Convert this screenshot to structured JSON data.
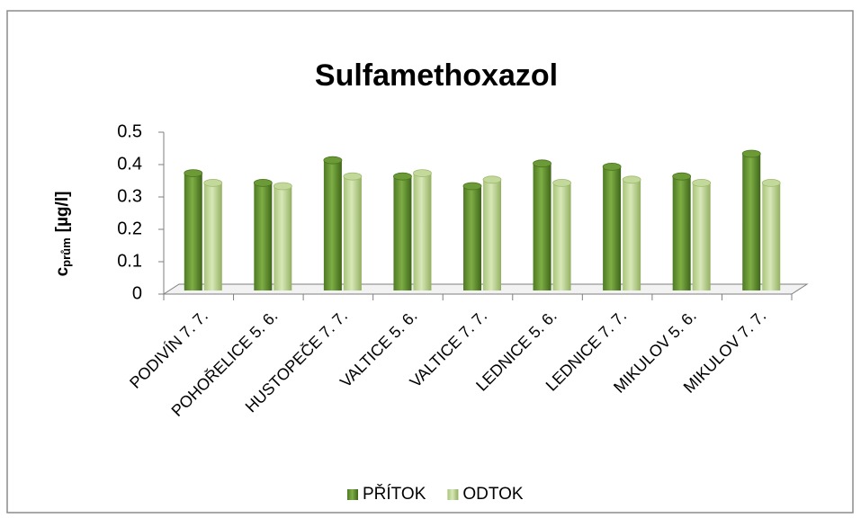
{
  "chart_data": {
    "type": "bar",
    "title": "Sulfamethoxazol",
    "y_label": {
      "main": "c",
      "sub": "prům",
      "unit": "[µg/l]"
    },
    "categories": [
      "PODIVÍN 7. 7.",
      "POHOŘELICE 5. 6.",
      "HUSTOPEČE 7. 7.",
      "VALTICE 5. 6.",
      "VALTICE 7. 7.",
      "LEDNICE 5. 6.",
      "LEDNICE 7. 7.",
      "MIKULOV 5. 6.",
      "MIKULOV 7. 7."
    ],
    "series": [
      {
        "name": "PŘÍTOK",
        "color": "#6b9a36",
        "values": [
          0.39,
          0.36,
          0.43,
          0.38,
          0.35,
          0.42,
          0.41,
          0.38,
          0.45
        ]
      },
      {
        "name": "ODTOK",
        "color": "#c3d99b",
        "values": [
          0.36,
          0.35,
          0.38,
          0.39,
          0.37,
          0.36,
          0.37,
          0.36,
          0.36
        ]
      }
    ],
    "ylim": [
      0,
      0.5
    ],
    "yticks": [
      0,
      0.1,
      0.2,
      0.3,
      0.4,
      0.5
    ],
    "legend": "bottom"
  }
}
